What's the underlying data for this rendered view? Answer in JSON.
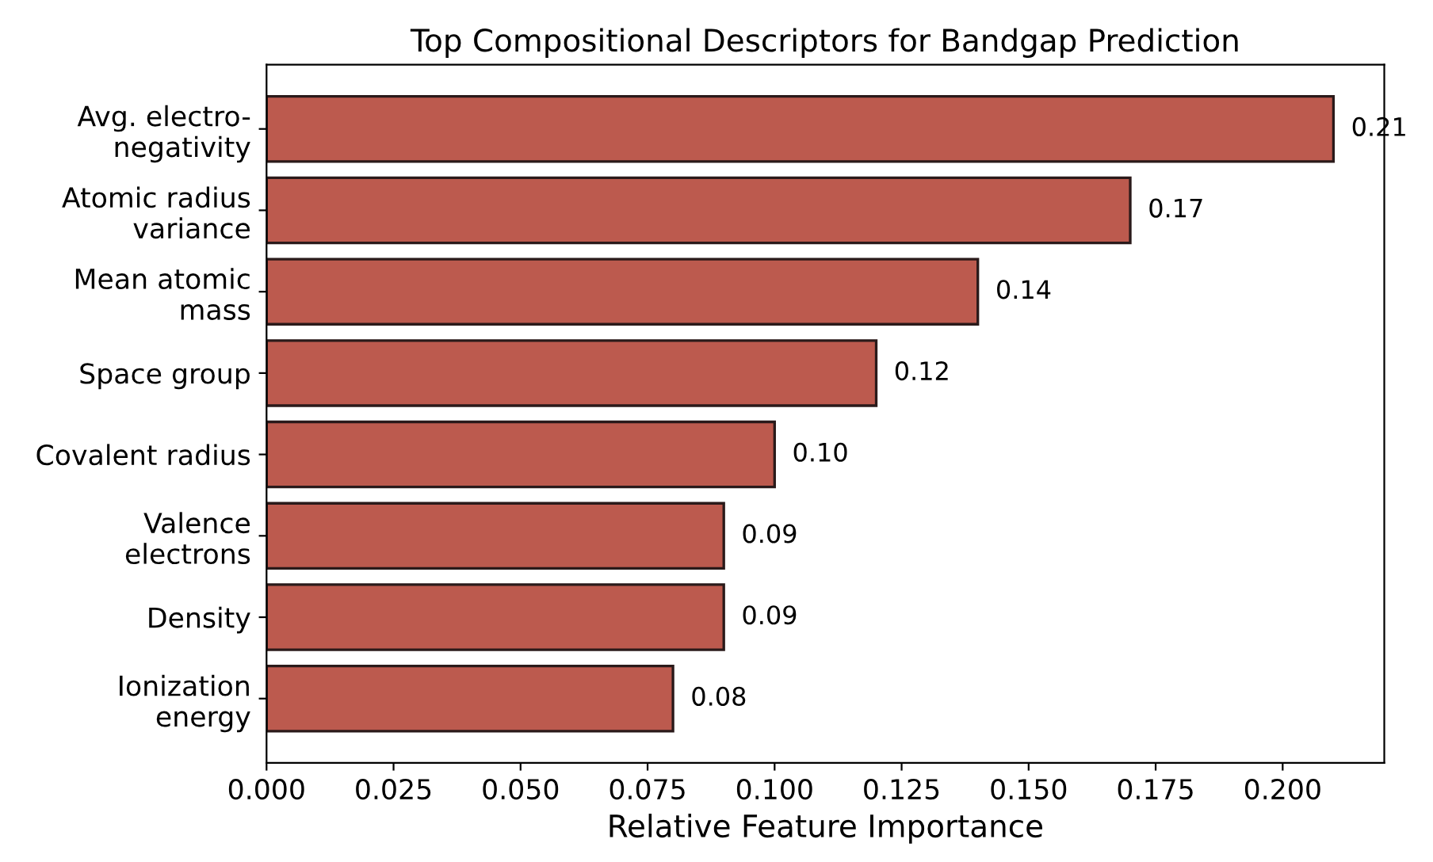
{
  "chart_data": {
    "type": "bar",
    "orientation": "horizontal",
    "title": "Top Compositional Descriptors for Bandgap Prediction",
    "xlabel": "Relative Feature Importance",
    "categories": [
      "Avg. electro-\nnegativity",
      "Atomic radius\nvariance",
      "Mean atomic\nmass",
      "Space group",
      "Covalent radius",
      "Valence\nelectrons",
      "Density",
      "Ionization\nenergy"
    ],
    "values": [
      0.21,
      0.17,
      0.14,
      0.12,
      0.1,
      0.09,
      0.09,
      0.08
    ],
    "value_labels": [
      "0.21",
      "0.17",
      "0.14",
      "0.12",
      "0.10",
      "0.09",
      "0.09",
      "0.08"
    ],
    "color": "#bc5a4e",
    "xlim": [
      0,
      0.22
    ],
    "xticks": [
      {
        "value": 0,
        "label": "0.000"
      },
      {
        "value": 0.025,
        "label": "0.025"
      },
      {
        "value": 0.05,
        "label": "0.050"
      },
      {
        "value": 0.075,
        "label": "0.075"
      },
      {
        "value": 0.1,
        "label": "0.100"
      },
      {
        "value": 0.125,
        "label": "0.125"
      },
      {
        "value": 0.15,
        "label": "0.150"
      },
      {
        "value": 0.175,
        "label": "0.175"
      },
      {
        "value": 0.2,
        "label": "0.200"
      }
    ],
    "grid": false,
    "legend": false
  }
}
